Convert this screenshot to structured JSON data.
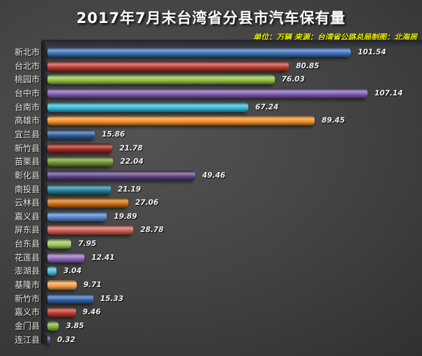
{
  "title": "2017年7月末台湾省分县市汽车保有量",
  "subtitle": "单位：万辆 来源：台湾省公路总局制图：北海居",
  "colors": {
    "background_center": "#535353",
    "background_edge": "#242424",
    "title_text": "#ffffff",
    "subtitle_text": "#eded00",
    "label_text": "#e6e6e6",
    "value_text": "#f0f0f0"
  },
  "chart_data": {
    "type": "bar",
    "orientation": "horizontal",
    "title": "2017年7月末台湾省分县市汽车保有量",
    "unit_note": "单位：万辆 来源：台湾省公路总局制图：北海居",
    "xlim": [
      0,
      110
    ],
    "grid": false,
    "legend": false,
    "value_labels": true,
    "categories": [
      "新北市",
      "台北市",
      "桃园市",
      "台中市",
      "台南市",
      "高雄市",
      "宜兰县",
      "新竹县",
      "苗栗县",
      "彰化县",
      "南投县",
      "云林县",
      "嘉义县",
      "屏东县",
      "台东县",
      "花莲县",
      "澎湖县",
      "基隆市",
      "新竹市",
      "嘉义市",
      "金门县",
      "连江县"
    ],
    "values": [
      101.54,
      80.85,
      76.03,
      107.14,
      67.24,
      89.45,
      15.86,
      21.78,
      22.04,
      49.46,
      21.19,
      27.06,
      19.89,
      28.78,
      7.95,
      12.41,
      3.04,
      9.71,
      15.33,
      9.46,
      3.85,
      0.32
    ],
    "bar_colors": [
      "#3a6fb7",
      "#c0392e",
      "#8bbe3f",
      "#7a57ac",
      "#2fb4d1",
      "#f08c26",
      "#2d5c9b",
      "#9c241c",
      "#71912c",
      "#5a3d80",
      "#1f7f98",
      "#ce6e10",
      "#4d80c6",
      "#cd5a50",
      "#9ac658",
      "#8a68b8",
      "#41b9d4",
      "#f09c45",
      "#2f62a8",
      "#bf372e",
      "#7fae37",
      "#5b3f85"
    ]
  }
}
